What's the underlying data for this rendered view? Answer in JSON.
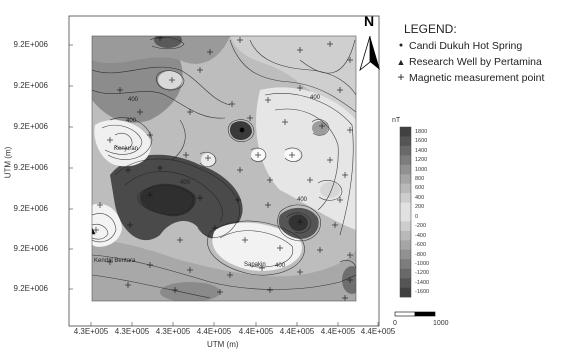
{
  "axes": {
    "y_title": "UTM (m)",
    "x_title": "UTM (m)",
    "y_ticks": [
      "9.2E+006",
      "9.2E+006",
      "9.2E+006",
      "9.2E+006",
      "9.2E+006",
      "9.2E+006",
      "9.2E+006"
    ],
    "x_ticks": [
      "4.3E+005",
      "4.3E+005",
      "4.3E+005",
      "4.4E+005",
      "4.4E+005",
      "4.4E+005",
      "4.4E+005",
      "4.4E+005"
    ]
  },
  "north_arrow": {
    "label": "N"
  },
  "legend": {
    "title": "LEGEND:",
    "items": [
      {
        "symbol": "dot-icon",
        "glyph": "●",
        "label": "Candi Dukuh Hot Spring"
      },
      {
        "symbol": "triangle-icon",
        "glyph": "▲",
        "label": "Research Well by Pertamina"
      },
      {
        "symbol": "plus-icon",
        "glyph": "+",
        "label": "Magnetic measurement point"
      }
    ]
  },
  "colorbar": {
    "unit": "nT",
    "labels": [
      "1800",
      "1600",
      "1400",
      "1200",
      "1000",
      "800",
      "600",
      "400",
      "200",
      "0",
      "-200",
      "-400",
      "-600",
      "-800",
      "-1000",
      "-1200",
      "-1400",
      "-1600"
    ]
  },
  "scale_bar": {
    "start": "0",
    "end": "1000"
  },
  "map_labels": {
    "contours": [
      "400",
      "400",
      "400",
      "400",
      "400",
      "400"
    ],
    "places": [
      "Kenjuran",
      "Kendal Bentara",
      "Sapakin"
    ]
  },
  "colors": {
    "dark": "#3a3a3a",
    "light": "#f4f4f4",
    "contour": "#222222"
  }
}
